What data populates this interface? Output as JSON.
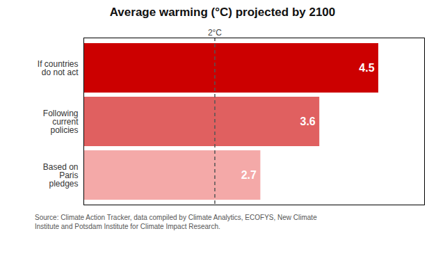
{
  "chart_data": {
    "type": "bar",
    "orientation": "horizontal",
    "title": "Average warming (°C) projected by 2100",
    "categories": [
      "Based on\nParis\npledges",
      "Following\ncurrent\npolicies",
      "If countries\ndo not act"
    ],
    "values": [
      2.7,
      3.6,
      4.5
    ],
    "colors": [
      "#f4a9a8",
      "#e06060",
      "#cc0000"
    ],
    "data_labels": true,
    "xlim": [
      0,
      5.2
    ],
    "tick_labels": "y",
    "annotations": [
      {
        "x": 2.0,
        "text": "2°C",
        "line_style": "dashed"
      }
    ],
    "caption": "Source: Climate Action Tracker, data compiled by Climate Analytics, ECOFYS, New Climate\nInstitute and Potsdam Institute for Climate Impact Research."
  }
}
